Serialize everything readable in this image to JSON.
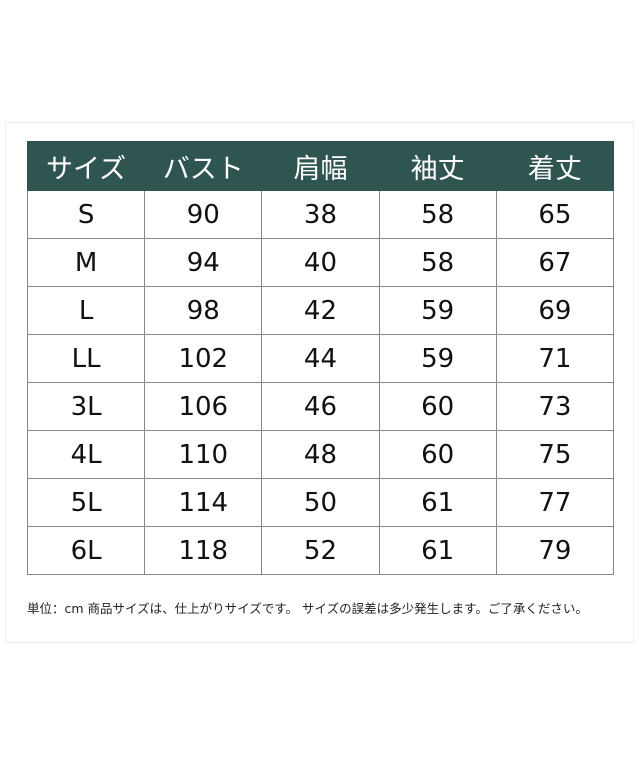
{
  "table": {
    "headers": [
      "サイズ",
      "バスト",
      "肩幅",
      "袖丈",
      "着丈"
    ],
    "rows": [
      [
        "S",
        "90",
        "38",
        "58",
        "65"
      ],
      [
        "M",
        "94",
        "40",
        "58",
        "67"
      ],
      [
        "L",
        "98",
        "42",
        "59",
        "69"
      ],
      [
        "LL",
        "102",
        "44",
        "59",
        "71"
      ],
      [
        "3L",
        "106",
        "46",
        "60",
        "73"
      ],
      [
        "4L",
        "110",
        "48",
        "60",
        "75"
      ],
      [
        "5L",
        "114",
        "50",
        "61",
        "77"
      ],
      [
        "6L",
        "118",
        "52",
        "61",
        "79"
      ]
    ]
  },
  "note": "単位：cm 商品サイズは、仕上がりサイズです。 サイズの誤差は多少発生します。ご了承ください。",
  "colors": {
    "header_bg": "#2e5550"
  }
}
